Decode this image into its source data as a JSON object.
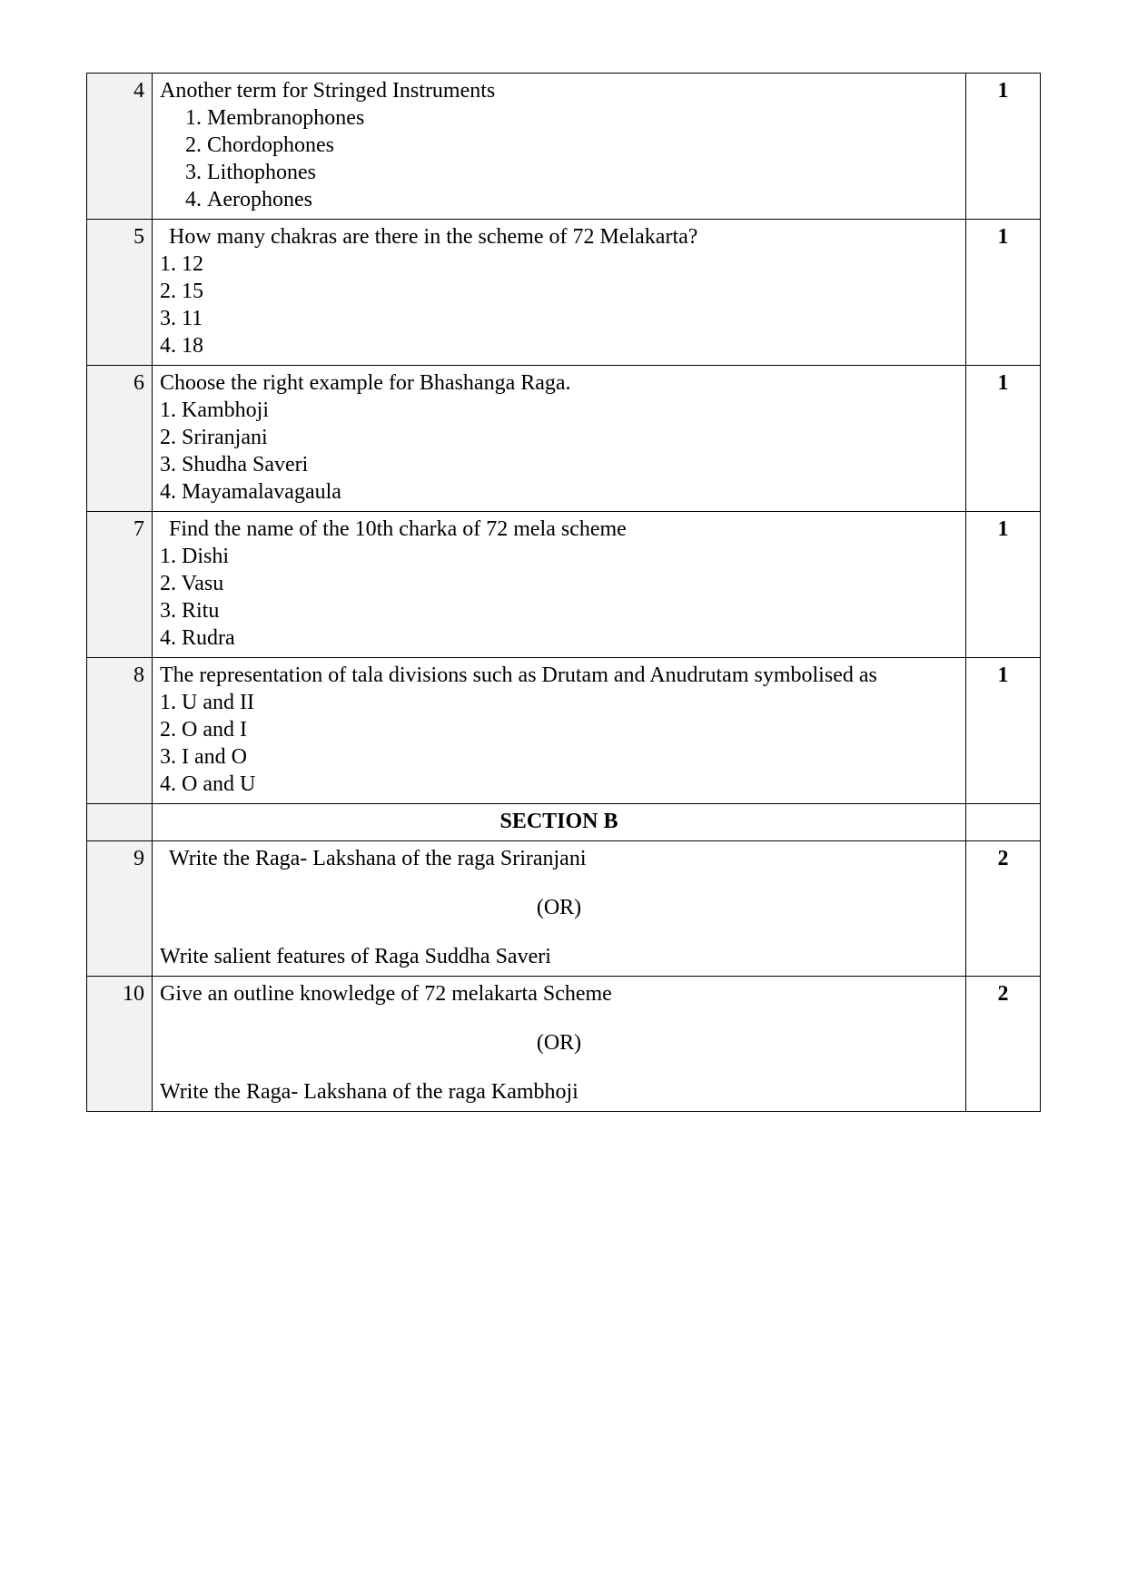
{
  "rows": [
    {
      "num": "4",
      "marks": "1",
      "stem": "Another term for Stringed Instruments",
      "opts_style": "ol_indent",
      "opts": [
        "Membranophones",
        "Chordophones",
        "Lithophones",
        "Aerophones"
      ]
    },
    {
      "num": "5",
      "marks": "1",
      "stem_indent": true,
      "stem": "How many chakras are there in the scheme of 72 Melakarta?",
      "opts_style": "plain_num",
      "opts": [
        "1. 12",
        "2. 15",
        "3. 11",
        "4. 18"
      ]
    },
    {
      "num": "6",
      "marks": "1",
      "stem": "Choose the right example for Bhashanga Raga.",
      "opts_style": "plain_dot",
      "opts": [
        "1.  Kambhoji",
        "2.  Sriranjani",
        "3.  Shudha Saveri",
        "4.  Mayamalavagaula"
      ]
    },
    {
      "num": "7",
      "marks": "1",
      "stem_indent": true,
      "stem": "Find the name of the 10th charka of 72 mela scheme",
      "opts_style": "plain_num",
      "opts": [
        "1. Dishi",
        "2. Vasu",
        "3. Ritu",
        "4. Rudra"
      ]
    },
    {
      "num": "8",
      "marks": "1",
      "stem": "The representation of  tala divisions such as  Drutam and Anudrutam symbolised as",
      "opts_style": "plain_dot",
      "opts": [
        "1.  U and II",
        "2.  O and I",
        "3.  I and O",
        "4.  O and U"
      ]
    },
    {
      "section": "SECTION B"
    },
    {
      "num": "9",
      "marks": "2",
      "or_pair": true,
      "stem_a_indent": true,
      "stem_a": "Write the Raga- Lakshana of the raga Sriranjani",
      "or_text": "(OR)",
      "stem_b": "Write salient features of Raga Suddha Saveri"
    },
    {
      "num": "10",
      "marks": "2",
      "or_pair": true,
      "stem_a": "Give an outline knowledge of 72 melakarta Scheme",
      "or_text": "(OR)",
      "stem_b": "Write the Raga- Lakshana of the raga Kambhoji"
    }
  ],
  "colors": {
    "border": "#000000",
    "num_bg": "#f2f2f2",
    "text": "#000000",
    "page_bg": "#ffffff"
  },
  "font": {
    "family": "Times New Roman",
    "size_pt": 18
  }
}
